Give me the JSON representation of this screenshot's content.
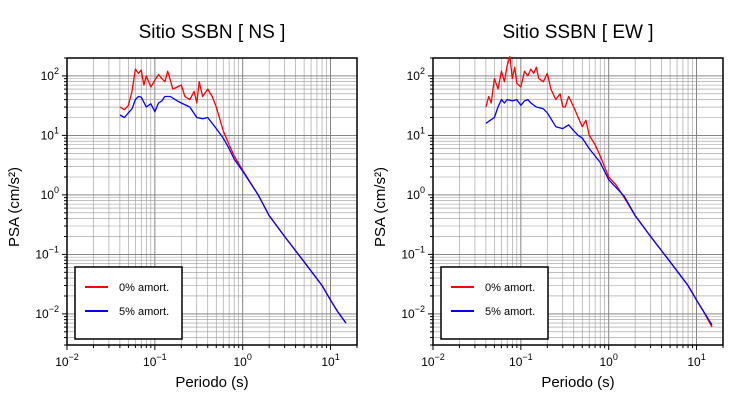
{
  "chart_data": [
    {
      "type": "line",
      "title": "Sitio SSBN [ NS ]",
      "xlabel": "Periodo (s)",
      "ylabel": "PSA (cm/s²)",
      "xscale": "log",
      "yscale": "log",
      "xlim": [
        0.01,
        20
      ],
      "ylim": [
        0.003,
        200
      ],
      "grid": true,
      "legend_position": "bottom-left",
      "x_ticks": [
        {
          "v": 0.01,
          "base": "10",
          "exp": "−2"
        },
        {
          "v": 0.1,
          "base": "10",
          "exp": "−1"
        },
        {
          "v": 1,
          "base": "10",
          "exp": "0"
        },
        {
          "v": 10,
          "base": "10",
          "exp": "1"
        }
      ],
      "y_ticks": [
        {
          "v": 0.01,
          "base": "10",
          "exp": "−2"
        },
        {
          "v": 0.1,
          "base": "10",
          "exp": "−1"
        },
        {
          "v": 1,
          "base": "10",
          "exp": "0"
        },
        {
          "v": 10,
          "base": "10",
          "exp": "1"
        },
        {
          "v": 100,
          "base": "10",
          "exp": "2"
        }
      ],
      "series": [
        {
          "name": "0% amort.",
          "color": "#ff0000",
          "x": [
            0.04,
            0.045,
            0.05,
            0.055,
            0.06,
            0.065,
            0.07,
            0.075,
            0.08,
            0.09,
            0.1,
            0.11,
            0.12,
            0.13,
            0.14,
            0.15,
            0.16,
            0.18,
            0.2,
            0.22,
            0.25,
            0.28,
            0.3,
            0.32,
            0.35,
            0.4,
            0.45,
            0.5,
            0.6,
            0.7,
            0.8,
            1.0,
            1.5,
            2,
            3,
            5,
            8,
            10,
            12,
            15
          ],
          "y": [
            30,
            27,
            32,
            55,
            130,
            110,
            125,
            70,
            100,
            65,
            85,
            105,
            90,
            80,
            120,
            85,
            60,
            65,
            70,
            45,
            40,
            55,
            35,
            80,
            45,
            60,
            45,
            30,
            12,
            7,
            4.5,
            2.6,
            1.0,
            0.45,
            0.2,
            0.075,
            0.03,
            0.017,
            0.011,
            0.007
          ]
        },
        {
          "name": "5% amort.",
          "color": "#0000ff",
          "x": [
            0.04,
            0.045,
            0.05,
            0.055,
            0.06,
            0.065,
            0.07,
            0.08,
            0.09,
            0.1,
            0.11,
            0.12,
            0.13,
            0.15,
            0.18,
            0.2,
            0.25,
            0.3,
            0.35,
            0.4,
            0.45,
            0.5,
            0.6,
            0.7,
            0.8,
            1.0,
            1.5,
            2,
            3,
            5,
            8,
            10,
            12,
            15
          ],
          "y": [
            22,
            20,
            24,
            28,
            40,
            45,
            44,
            30,
            34,
            25,
            35,
            38,
            45,
            45,
            38,
            35,
            30,
            20,
            19,
            20,
            16,
            13,
            9,
            6,
            4,
            2.5,
            1.0,
            0.45,
            0.2,
            0.075,
            0.03,
            0.017,
            0.011,
            0.007
          ]
        }
      ]
    },
    {
      "type": "line",
      "title": "Sitio SSBN [ EW ]",
      "xlabel": "Periodo (s)",
      "ylabel": "PSA (cm/s²)",
      "xscale": "log",
      "yscale": "log",
      "xlim": [
        0.01,
        20
      ],
      "ylim": [
        0.003,
        200
      ],
      "grid": true,
      "legend_position": "bottom-left",
      "x_ticks": [
        {
          "v": 0.01,
          "base": "10",
          "exp": "−2"
        },
        {
          "v": 0.1,
          "base": "10",
          "exp": "−1"
        },
        {
          "v": 1,
          "base": "10",
          "exp": "0"
        },
        {
          "v": 10,
          "base": "10",
          "exp": "1"
        }
      ],
      "y_ticks": [
        {
          "v": 0.01,
          "base": "10",
          "exp": "−2"
        },
        {
          "v": 0.1,
          "base": "10",
          "exp": "−1"
        },
        {
          "v": 1,
          "base": "10",
          "exp": "0"
        },
        {
          "v": 10,
          "base": "10",
          "exp": "1"
        },
        {
          "v": 100,
          "base": "10",
          "exp": "2"
        }
      ],
      "series": [
        {
          "name": "0% amort.",
          "color": "#ff0000",
          "x": [
            0.04,
            0.043,
            0.046,
            0.05,
            0.055,
            0.06,
            0.065,
            0.07,
            0.075,
            0.08,
            0.085,
            0.09,
            0.1,
            0.11,
            0.12,
            0.13,
            0.14,
            0.15,
            0.16,
            0.18,
            0.2,
            0.22,
            0.25,
            0.28,
            0.3,
            0.32,
            0.35,
            0.4,
            0.45,
            0.5,
            0.55,
            0.6,
            0.7,
            0.8,
            1.0,
            1.2,
            1.5,
            2,
            3,
            5,
            8,
            10,
            12,
            15
          ],
          "y": [
            30,
            45,
            35,
            90,
            60,
            120,
            80,
            150,
            210,
            90,
            140,
            75,
            65,
            120,
            100,
            130,
            110,
            140,
            90,
            80,
            110,
            60,
            40,
            50,
            30,
            30,
            45,
            30,
            20,
            14,
            18,
            10,
            7,
            4.5,
            2.0,
            1.5,
            0.9,
            0.45,
            0.2,
            0.075,
            0.03,
            0.017,
            0.011,
            0.006
          ]
        },
        {
          "name": "5% amort.",
          "color": "#0000ff",
          "x": [
            0.04,
            0.045,
            0.05,
            0.055,
            0.06,
            0.065,
            0.07,
            0.08,
            0.09,
            0.1,
            0.11,
            0.12,
            0.13,
            0.15,
            0.18,
            0.2,
            0.25,
            0.3,
            0.35,
            0.4,
            0.45,
            0.5,
            0.6,
            0.7,
            0.8,
            1.0,
            1.5,
            2,
            3,
            5,
            8,
            10,
            12,
            15
          ],
          "y": [
            16,
            18,
            20,
            30,
            40,
            35,
            40,
            38,
            40,
            32,
            38,
            40,
            35,
            30,
            28,
            24,
            14,
            13,
            15,
            12,
            10,
            9,
            6,
            4.5,
            3.5,
            1.8,
            0.95,
            0.45,
            0.2,
            0.075,
            0.03,
            0.017,
            0.011,
            0.0065
          ]
        }
      ]
    }
  ]
}
